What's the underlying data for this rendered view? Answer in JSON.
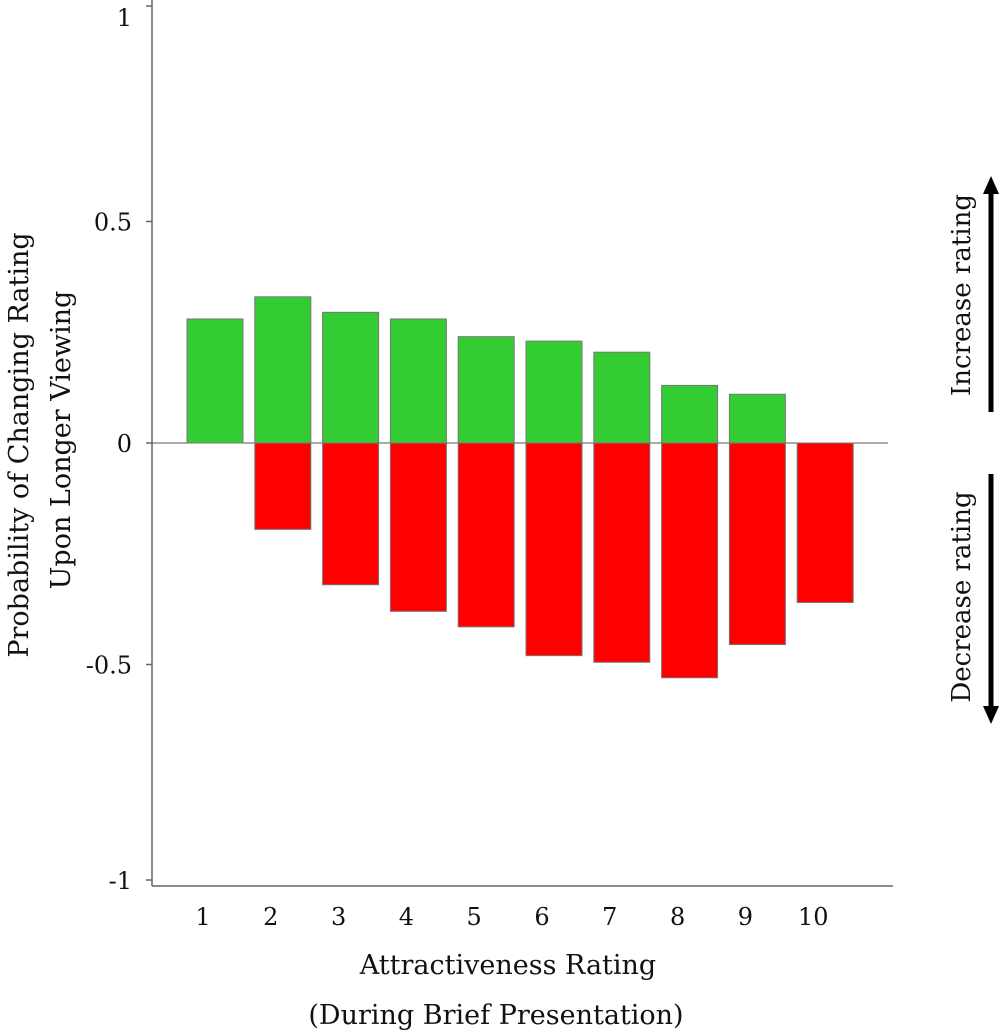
{
  "chart_data": {
    "type": "bar",
    "categories": [
      "1",
      "2",
      "3",
      "4",
      "5",
      "6",
      "7",
      "8",
      "9",
      "10"
    ],
    "series": [
      {
        "values": [
          0.28,
          0.33,
          0.295,
          0.28,
          0.24,
          0.23,
          0.205,
          0.13,
          0.11,
          0.0
        ]
      },
      {
        "values": [
          0.0,
          -0.195,
          -0.32,
          -0.38,
          -0.415,
          -0.48,
          -0.495,
          -0.53,
          -0.455,
          -0.36
        ]
      }
    ],
    "colors": {
      "increase": "#33cc33",
      "decrease": "#ff0000",
      "axis": "#555555"
    },
    "ylim": [
      -1,
      1
    ],
    "yticks": [
      "1",
      "0.5",
      "0",
      "-0.5",
      "-1"
    ],
    "ytick_values": [
      1,
      0.5,
      0,
      -0.5,
      -1
    ],
    "ylabel_line1": "Probability of Changing Rating",
    "ylabel_line2": "Upon Longer Viewing",
    "xlabel_line1": "Attractiveness Rating",
    "xlabel_line2": "(During Brief Presentation)",
    "annotations": {
      "increase": "Increase rating",
      "decrease": "Decrease rating"
    },
    "grid": false
  }
}
